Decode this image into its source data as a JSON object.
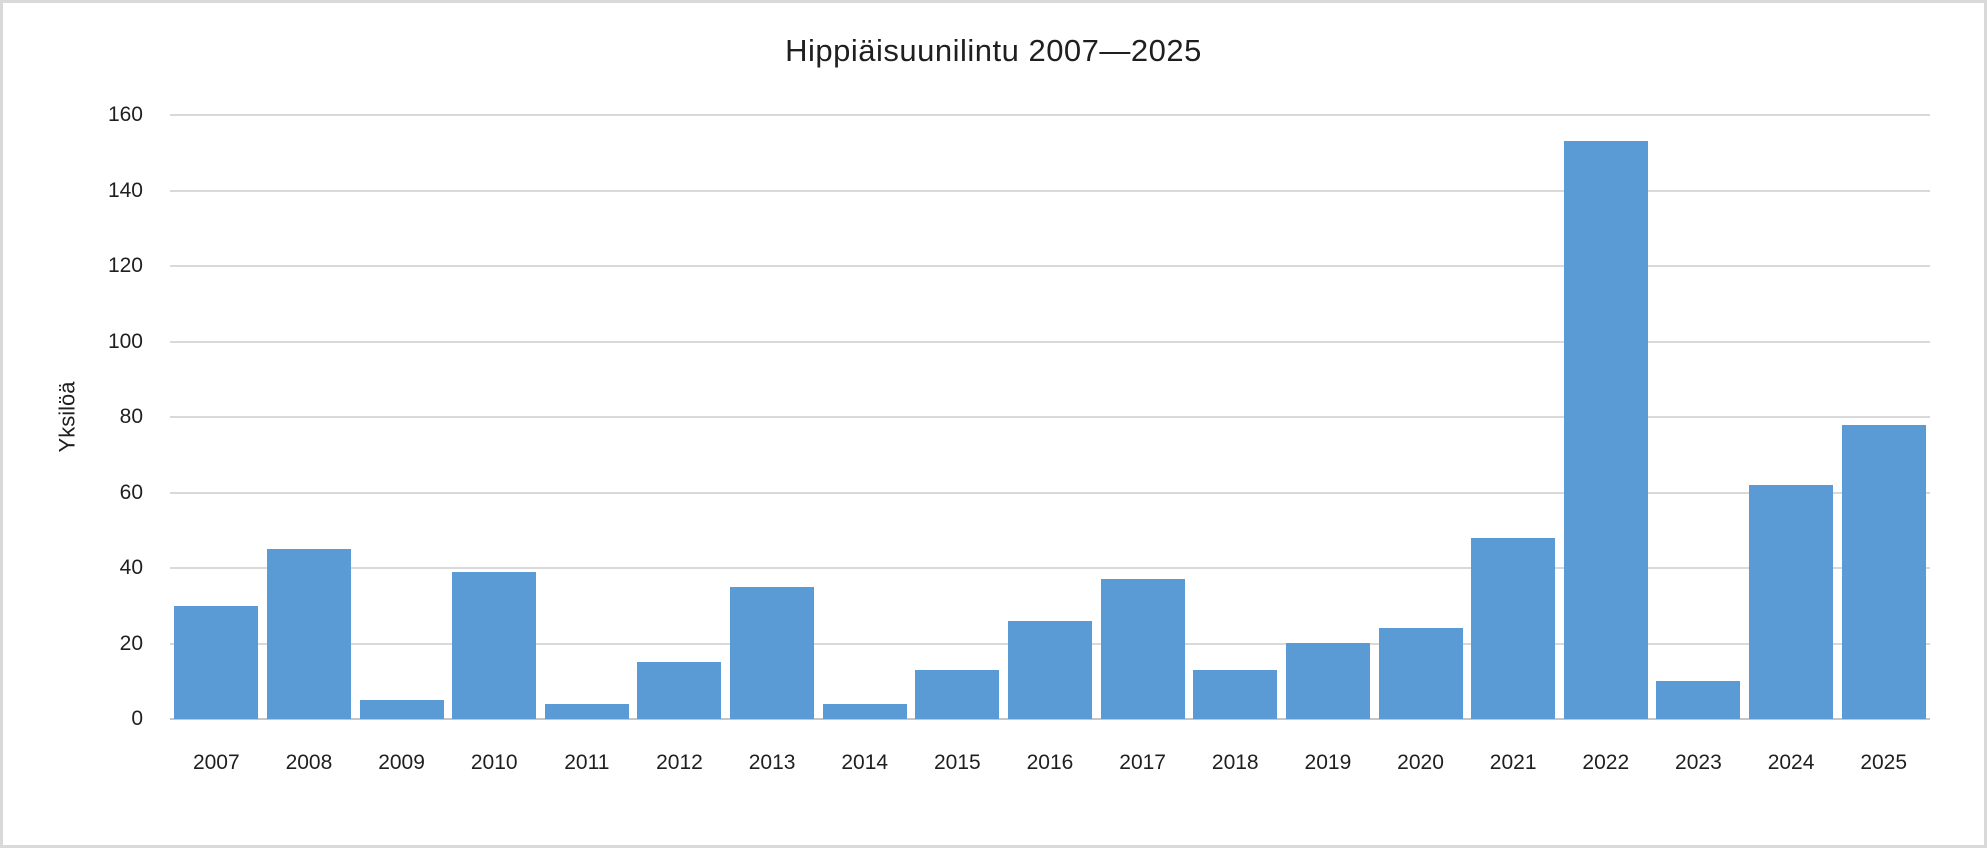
{
  "chart_data": {
    "type": "bar",
    "title": "Hippiäisuunilintu 2007—2025",
    "ylabel": "Yksilöä",
    "xlabel": "",
    "categories": [
      "2007",
      "2008",
      "2009",
      "2010",
      "2011",
      "2012",
      "2013",
      "2014",
      "2015",
      "2016",
      "2017",
      "2018",
      "2019",
      "2020",
      "2021",
      "2022",
      "2023",
      "2024",
      "2025"
    ],
    "values": [
      30,
      45,
      5,
      39,
      4,
      15,
      35,
      4,
      13,
      26,
      37,
      13,
      20,
      24,
      48,
      153,
      10,
      62,
      78
    ],
    "ylim": [
      0,
      160
    ],
    "ytick_step": 20,
    "yticks": [
      0,
      20,
      40,
      60,
      80,
      100,
      120,
      140,
      160
    ],
    "grid": true,
    "legend": false,
    "bar_color": "#5B9BD5",
    "gridline_color": "#D9D9D9",
    "axis_line_color": "#C6C6C6",
    "text_color": "#1f1f1f"
  }
}
